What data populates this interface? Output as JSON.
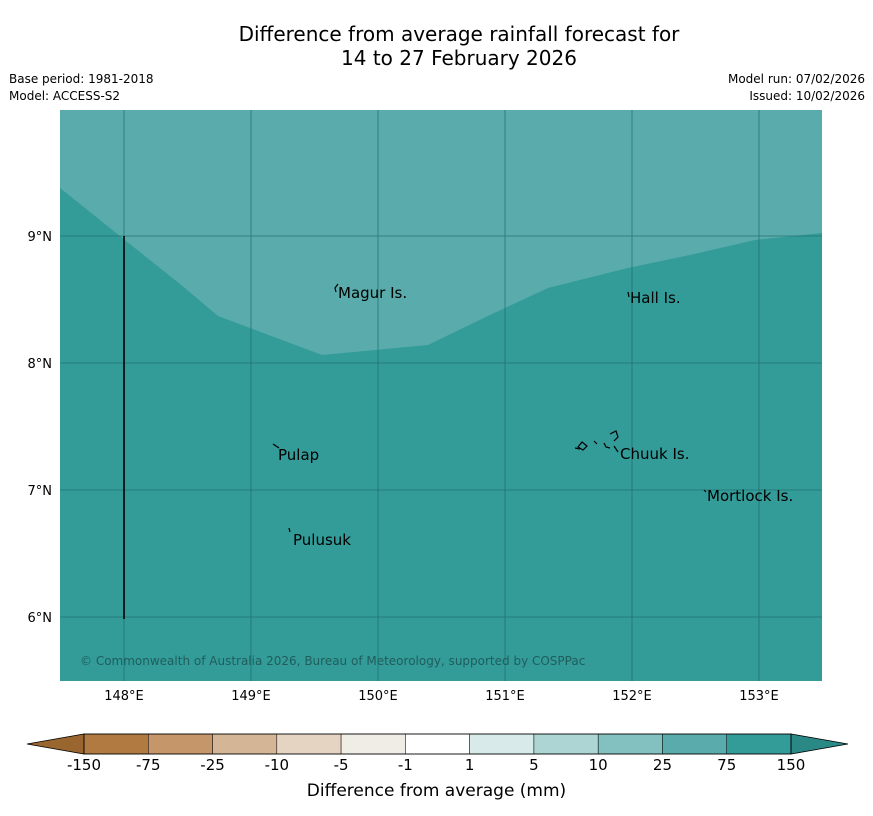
{
  "header": {
    "title_line1": "Difference from average rainfall forecast for",
    "title_line2": "14 to 27 February 2026",
    "base_period": "Base period: 1981-2018",
    "model": "Model: ACCESS-S2",
    "model_run": "Model run: 07/02/2026",
    "issued": "Issued: 10/02/2026"
  },
  "map": {
    "lon_ticks": [
      "148°E",
      "149°E",
      "150°E",
      "151°E",
      "152°E",
      "153°E"
    ],
    "lat_ticks": [
      "9°N",
      "8°N",
      "7°N",
      "6°N"
    ],
    "places": [
      {
        "id": "magur",
        "name": "Magur Is."
      },
      {
        "id": "hall",
        "name": "Hall Is."
      },
      {
        "id": "pulap",
        "name": "Pulap"
      },
      {
        "id": "chuuk",
        "name": "Chuuk Is."
      },
      {
        "id": "mortlock",
        "name": "Mortlock Is."
      },
      {
        "id": "pulusuk",
        "name": "Pulusuk"
      }
    ],
    "copyright": "© Commonwealth of Australia 2026, Bureau of Meteorology, supported by COSPPac",
    "colors": {
      "band_75_150": "#5aabab",
      "band_above_150": "#339b98",
      "gridline": "#1f6f6c"
    }
  },
  "colorbar": {
    "label": "Difference from average (mm)",
    "tick_labels": [
      "-150",
      "-75",
      "-25",
      "-10",
      "-5",
      "-1",
      "1",
      "5",
      "10",
      "25",
      "75",
      "150"
    ],
    "colors": [
      "#b07a40",
      "#c4966a",
      "#d4b596",
      "#e6d4c3",
      "#f0ede6",
      "#ffffff",
      "#d8ebea",
      "#acd5d4",
      "#82c1bf",
      "#5aabab",
      "#339b98"
    ],
    "low_extend_color": "#9a6630",
    "high_extend_color": "#2a8885"
  }
}
